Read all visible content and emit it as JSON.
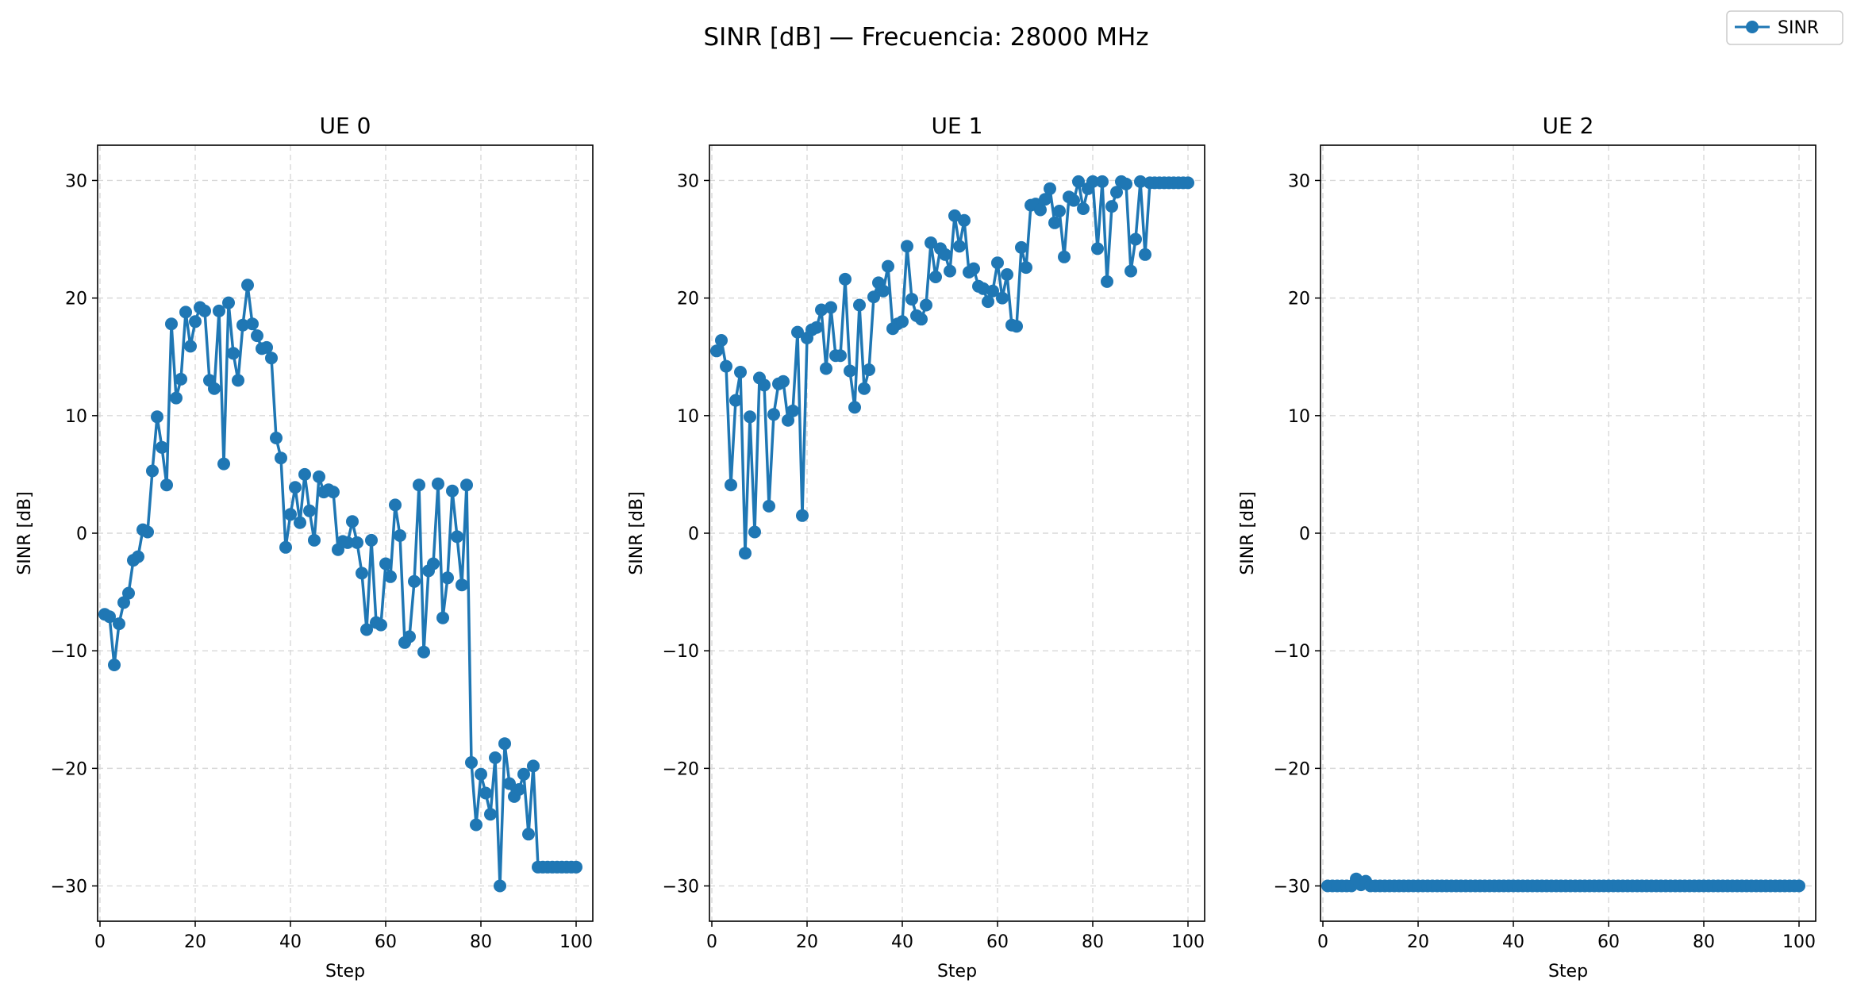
{
  "figure": {
    "suptitle": "SINR [dB] — Frecuencia: 28000 MHz",
    "legend": {
      "label": "SINR",
      "placement": "top-right"
    },
    "series_color": "#1f77b4"
  },
  "chart_data": [
    {
      "type": "line",
      "title": "UE 0",
      "xlabel": "Step",
      "ylabel": "SINR [dB]",
      "xlim": [
        -0.5,
        103.5
      ],
      "ylim": [
        -33,
        33
      ],
      "xticks": [
        0,
        20,
        40,
        60,
        80,
        100
      ],
      "yticks": [
        30,
        20,
        10,
        0,
        -10,
        -20,
        -30
      ],
      "ytick_labels": [
        "30",
        "20",
        "10",
        "0",
        "−10",
        "−20",
        "−30"
      ],
      "grid": true,
      "series": [
        {
          "name": "SINR",
          "x": [
            1,
            2,
            3,
            4,
            5,
            6,
            7,
            8,
            9,
            10,
            11,
            12,
            13,
            14,
            15,
            16,
            17,
            18,
            19,
            20,
            21,
            22,
            23,
            24,
            25,
            26,
            27,
            28,
            29,
            30,
            31,
            32,
            33,
            34,
            35,
            36,
            37,
            38,
            39,
            40,
            41,
            42,
            43,
            44,
            45,
            46,
            47,
            48,
            49,
            50,
            51,
            52,
            53,
            54,
            55,
            56,
            57,
            58,
            59,
            60,
            61,
            62,
            63,
            64,
            65,
            66,
            67,
            68,
            69,
            70,
            71,
            72,
            73,
            74,
            75,
            76,
            77,
            78,
            79,
            80,
            81,
            82,
            83,
            84,
            85,
            86,
            87,
            88,
            89,
            90,
            91,
            92,
            93,
            94,
            95,
            96,
            97,
            98,
            99,
            100
          ],
          "y": [
            -6.9,
            -7.1,
            -11.2,
            -7.7,
            -5.9,
            -5.1,
            -2.3,
            -2.0,
            0.3,
            0.1,
            5.3,
            9.9,
            7.3,
            4.1,
            17.8,
            11.5,
            13.1,
            18.8,
            15.9,
            18.0,
            19.2,
            18.9,
            13.0,
            12.3,
            18.9,
            5.9,
            19.6,
            15.3,
            13.0,
            17.7,
            21.1,
            17.8,
            16.8,
            15.7,
            15.8,
            14.9,
            8.1,
            6.4,
            -1.2,
            1.6,
            3.9,
            0.9,
            5.0,
            1.9,
            -0.6,
            4.8,
            3.5,
            3.7,
            3.5,
            -1.4,
            -0.7,
            -0.8,
            1.0,
            -0.8,
            -3.4,
            -8.2,
            -0.6,
            -7.6,
            -7.8,
            -2.6,
            -3.7,
            2.4,
            -0.2,
            -9.3,
            -8.8,
            -4.1,
            4.1,
            -10.1,
            -3.2,
            -2.6,
            4.2,
            -7.2,
            -3.8,
            3.6,
            -0.3,
            -4.4,
            4.1,
            -19.5,
            -24.8,
            -20.5,
            -22.1,
            -23.9,
            -19.1,
            -30.0,
            -17.9,
            -21.3,
            -22.4,
            -21.8,
            -20.5,
            -25.6,
            -19.8,
            -28.4,
            -28.4,
            -28.4,
            -28.4,
            -28.4,
            -28.4,
            -28.4,
            -28.4,
            -28.4
          ]
        }
      ]
    },
    {
      "type": "line",
      "title": "UE 1",
      "xlabel": "Step",
      "ylabel": "SINR [dB]",
      "xlim": [
        -0.5,
        103.5
      ],
      "ylim": [
        -33,
        33
      ],
      "xticks": [
        0,
        20,
        40,
        60,
        80,
        100
      ],
      "yticks": [
        30,
        20,
        10,
        0,
        -10,
        -20,
        -30
      ],
      "ytick_labels": [
        "30",
        "20",
        "10",
        "0",
        "−10",
        "−20",
        "−30"
      ],
      "grid": true,
      "series": [
        {
          "name": "SINR",
          "x": [
            1,
            2,
            3,
            4,
            5,
            6,
            7,
            8,
            9,
            10,
            11,
            12,
            13,
            14,
            15,
            16,
            17,
            18,
            19,
            20,
            21,
            22,
            23,
            24,
            25,
            26,
            27,
            28,
            29,
            30,
            31,
            32,
            33,
            34,
            35,
            36,
            37,
            38,
            39,
            40,
            41,
            42,
            43,
            44,
            45,
            46,
            47,
            48,
            49,
            50,
            51,
            52,
            53,
            54,
            55,
            56,
            57,
            58,
            59,
            60,
            61,
            62,
            63,
            64,
            65,
            66,
            67,
            68,
            69,
            70,
            71,
            72,
            73,
            74,
            75,
            76,
            77,
            78,
            79,
            80,
            81,
            82,
            83,
            84,
            85,
            86,
            87,
            88,
            89,
            90,
            91,
            92,
            93,
            94,
            95,
            96,
            97,
            98,
            99,
            100
          ],
          "y": [
            15.5,
            16.4,
            14.2,
            4.1,
            11.3,
            13.7,
            -1.7,
            9.9,
            0.1,
            13.2,
            12.6,
            2.3,
            10.1,
            12.7,
            12.9,
            9.6,
            10.4,
            17.1,
            1.5,
            16.6,
            17.3,
            17.5,
            19.0,
            14.0,
            19.2,
            15.1,
            15.1,
            21.6,
            13.8,
            10.7,
            19.4,
            12.3,
            13.9,
            20.1,
            21.3,
            20.6,
            22.7,
            17.4,
            17.8,
            18.0,
            24.4,
            19.9,
            18.5,
            18.2,
            19.4,
            24.7,
            21.8,
            24.2,
            23.7,
            22.3,
            27.0,
            24.4,
            26.6,
            22.2,
            22.5,
            21.0,
            20.8,
            19.7,
            20.6,
            23.0,
            20.0,
            22.0,
            17.7,
            17.6,
            24.3,
            22.6,
            27.9,
            28.0,
            27.5,
            28.4,
            29.3,
            26.4,
            27.4,
            23.5,
            28.6,
            28.3,
            29.9,
            27.6,
            29.3,
            29.9,
            24.2,
            29.9,
            21.4,
            27.8,
            29.0,
            29.9,
            29.7,
            22.3,
            25.0,
            29.9,
            23.7,
            29.8,
            29.8,
            29.8,
            29.8,
            29.8,
            29.8,
            29.8,
            29.8,
            29.8
          ]
        }
      ]
    },
    {
      "type": "line",
      "title": "UE 2",
      "xlabel": "Step",
      "ylabel": "SINR [dB]",
      "xlim": [
        -0.5,
        103.5
      ],
      "ylim": [
        -33,
        33
      ],
      "xticks": [
        0,
        20,
        40,
        60,
        80,
        100
      ],
      "yticks": [
        30,
        20,
        10,
        0,
        -10,
        -20,
        -30
      ],
      "ytick_labels": [
        "30",
        "20",
        "10",
        "0",
        "−10",
        "−20",
        "−30"
      ],
      "grid": true,
      "series": [
        {
          "name": "SINR",
          "x": [
            1,
            2,
            3,
            4,
            5,
            6,
            7,
            8,
            9,
            10,
            11,
            12,
            13,
            14,
            15,
            16,
            17,
            18,
            19,
            20,
            21,
            22,
            23,
            24,
            25,
            26,
            27,
            28,
            29,
            30,
            31,
            32,
            33,
            34,
            35,
            36,
            37,
            38,
            39,
            40,
            41,
            42,
            43,
            44,
            45,
            46,
            47,
            48,
            49,
            50,
            51,
            52,
            53,
            54,
            55,
            56,
            57,
            58,
            59,
            60,
            61,
            62,
            63,
            64,
            65,
            66,
            67,
            68,
            69,
            70,
            71,
            72,
            73,
            74,
            75,
            76,
            77,
            78,
            79,
            80,
            81,
            82,
            83,
            84,
            85,
            86,
            87,
            88,
            89,
            90,
            91,
            92,
            93,
            94,
            95,
            96,
            97,
            98,
            99,
            100
          ],
          "y": [
            -30,
            -30,
            -30,
            -30,
            -30,
            -30,
            -29.4,
            -29.9,
            -29.6,
            -30,
            -30,
            -30,
            -30,
            -30,
            -30,
            -30,
            -30,
            -30,
            -30,
            -30,
            -30,
            -30,
            -30,
            -30,
            -30,
            -30,
            -30,
            -30,
            -30,
            -30,
            -30,
            -30,
            -30,
            -30,
            -30,
            -30,
            -30,
            -30,
            -30,
            -30,
            -30,
            -30,
            -30,
            -30,
            -30,
            -30,
            -30,
            -30,
            -30,
            -30,
            -30,
            -30,
            -30,
            -30,
            -30,
            -30,
            -30,
            -30,
            -30,
            -30,
            -30,
            -30,
            -30,
            -30,
            -30,
            -30,
            -30,
            -30,
            -30,
            -30,
            -30,
            -30,
            -30,
            -30,
            -30,
            -30,
            -30,
            -30,
            -30,
            -30,
            -30,
            -30,
            -30,
            -30,
            -30,
            -30,
            -30,
            -30,
            -30,
            -30,
            -30,
            -30,
            -30,
            -30,
            -30,
            -30,
            -30,
            -30,
            -30,
            -30
          ]
        }
      ]
    }
  ]
}
